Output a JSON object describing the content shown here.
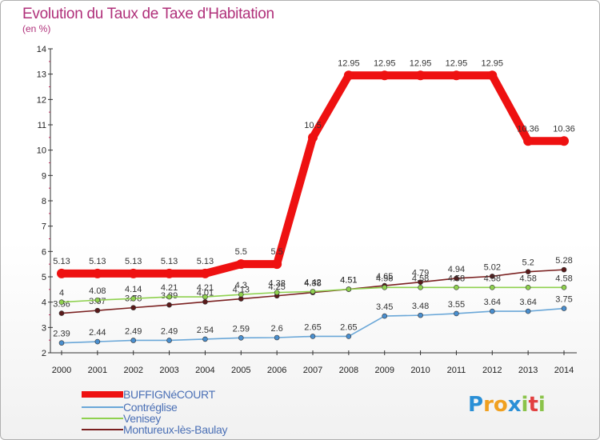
{
  "title": "Evolution du Taux de Taxe d'Habitation",
  "subtitle": "(en %)",
  "logo": {
    "text": "Proxiti",
    "letters": [
      {
        "ch": "P",
        "color": "#2a8fd6"
      },
      {
        "ch": "r",
        "color": "#f0a020"
      },
      {
        "ch": "o",
        "color": "#f0a020"
      },
      {
        "ch": "x",
        "color": "#2a8fd6"
      },
      {
        "ch": "i",
        "color": "#8bc34a"
      },
      {
        "ch": "t",
        "color": "#e24040"
      },
      {
        "ch": "i",
        "color": "#8bc34a"
      }
    ]
  },
  "chart_data": {
    "type": "line",
    "title": "Evolution du Taux de Taxe d'Habitation",
    "ylabel": "(en %)",
    "xlabel": "",
    "ylim": [
      2,
      14
    ],
    "yticks": [
      "2",
      "3",
      "4",
      "5",
      "6",
      "7",
      "8",
      "9",
      "10",
      "11",
      "12",
      "13",
      "14"
    ],
    "categories": [
      "2000",
      "2001",
      "2002",
      "2003",
      "2004",
      "2005",
      "2006",
      "2007",
      "2008",
      "2009",
      "2010",
      "2011",
      "2012",
      "2013",
      "2014"
    ],
    "grid": false,
    "series": [
      {
        "name": "Montureux-lès-Baulay",
        "color": "#7a2020",
        "marker": "#5a1a1a",
        "values": [
          3.56,
          3.67,
          3.78,
          3.89,
          4.01,
          4.13,
          4.25,
          4.38,
          4.51,
          4.65,
          4.79,
          4.94,
          5.02,
          5.2,
          5.28
        ],
        "labels": [
          "3.56",
          "3.67",
          "3.78",
          "3.89",
          "4.01",
          "4.13",
          "4.25",
          "4.38",
          "4.51",
          "4.65",
          "4.79",
          "4.94",
          "5.02",
          "5.2",
          "5.28"
        ]
      },
      {
        "name": "Venisey",
        "color": "#8fd14f",
        "marker": "#8fd14f",
        "values": [
          4,
          4.08,
          4.14,
          4.21,
          4.21,
          4.3,
          4.38,
          4.42,
          4.51,
          4.58,
          4.58,
          4.58,
          4.58,
          4.58,
          4.58
        ],
        "labels": [
          "4",
          "4.08",
          "4.14",
          "4.21",
          "4.21",
          "4.3",
          "4.38",
          "4.42",
          "4.51",
          "4.58",
          "4.58",
          "4.58",
          "4.58",
          "4.58",
          "4.58"
        ]
      },
      {
        "name": "Contréglise",
        "color": "#6aa7d8",
        "marker": "#4a8fcf",
        "values": [
          2.39,
          2.44,
          2.49,
          2.49,
          2.54,
          2.59,
          2.6,
          2.65,
          2.65,
          3.45,
          3.48,
          3.55,
          3.64,
          3.64,
          3.75
        ],
        "labels": [
          "2.39",
          "2.44",
          "2.49",
          "2.49",
          "2.54",
          "2.59",
          "2.6",
          "2.65",
          "2.65",
          "3.45",
          "3.48",
          "3.55",
          "3.64",
          "3.64",
          "3.75"
        ]
      },
      {
        "name": "BUFFIGNéCOURT",
        "color": "#ee1111",
        "marker": "#ee1111",
        "values": [
          5.13,
          5.13,
          5.13,
          5.13,
          5.13,
          5.5,
          5.5,
          10.5,
          12.95,
          12.95,
          12.95,
          12.95,
          12.95,
          10.36,
          10.36
        ],
        "labels": [
          "5.13",
          "5.13",
          "5.13",
          "5.13",
          "5.13",
          "5.5",
          "5.5",
          "10.5",
          "12.95",
          "12.95",
          "12.95",
          "12.95",
          "12.95",
          "10.36",
          "10.36"
        ]
      }
    ],
    "legend": {
      "placement": "bottom-left",
      "entries": [
        "BUFFIGNéCOURT",
        "Contréglise",
        "Venisey",
        "Montureux-lès-Baulay"
      ]
    }
  }
}
